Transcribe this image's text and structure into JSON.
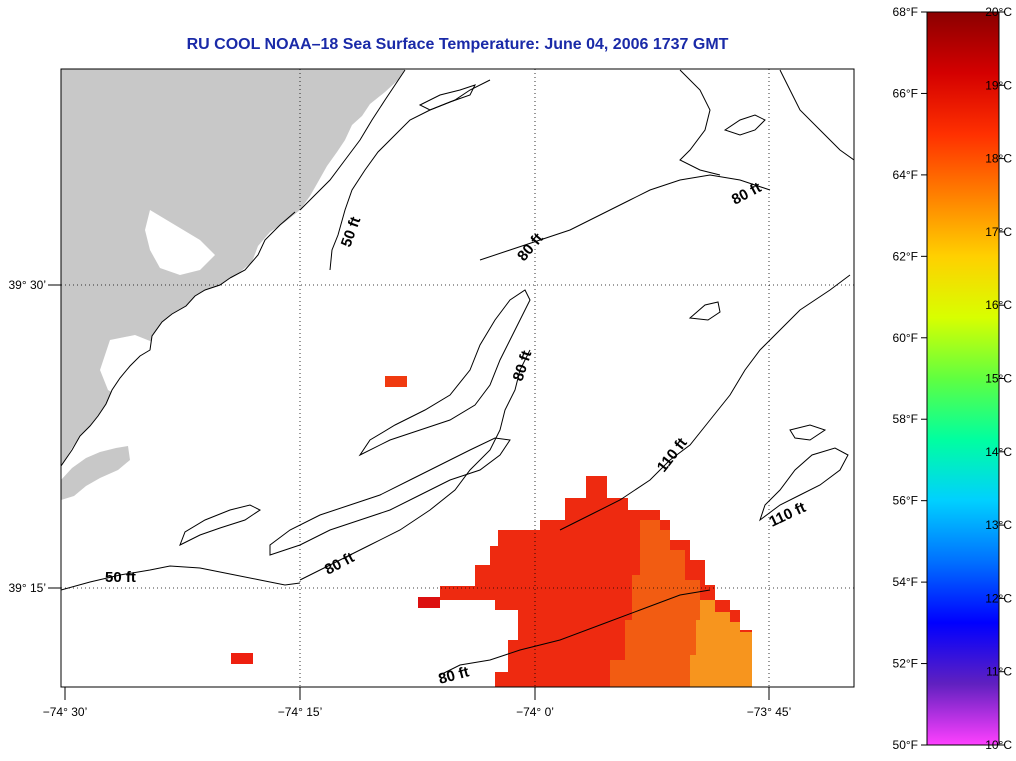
{
  "title": "RU COOL  NOAA–18  Sea Surface Temperature:  June 04, 2006 1737 GMT",
  "map": {
    "longitude_labels": [
      "−74° 30’",
      "−74° 15’",
      "−74° 0’",
      "−73° 45’"
    ],
    "latitude_labels": [
      "39° 30’",
      "39° 15’"
    ],
    "contour_labels": [
      "50 ft",
      "50 ft",
      "80 ft",
      "80 ft",
      "80 ft",
      "80 ft",
      "80 ft",
      "110 ft",
      "110 ft"
    ],
    "land_color": "#c8c8c8",
    "sst_color_warm": "#ee2a10",
    "sst_color_mid": "#f25a10",
    "sst_color_cool": "#f79a20"
  },
  "colorbar": {
    "fahrenheit_labels": [
      "68°F",
      "66°F",
      "64°F",
      "62°F",
      "60°F",
      "58°F",
      "56°F",
      "54°F",
      "52°F",
      "50°F"
    ],
    "celsius_labels": [
      "20°C",
      "19°C",
      "18°C",
      "17°C",
      "16°C",
      "15°C",
      "14°C",
      "13°C",
      "12°C",
      "11°C",
      "10°C"
    ],
    "colors": [
      "#8b0000",
      "#d40000",
      "#ff3000",
      "#ff8000",
      "#ffd000",
      "#d8ff00",
      "#60ff40",
      "#00ffa0",
      "#00d0ff",
      "#0070ff",
      "#0000ff",
      "#6020c0",
      "#ff40ff"
    ]
  }
}
